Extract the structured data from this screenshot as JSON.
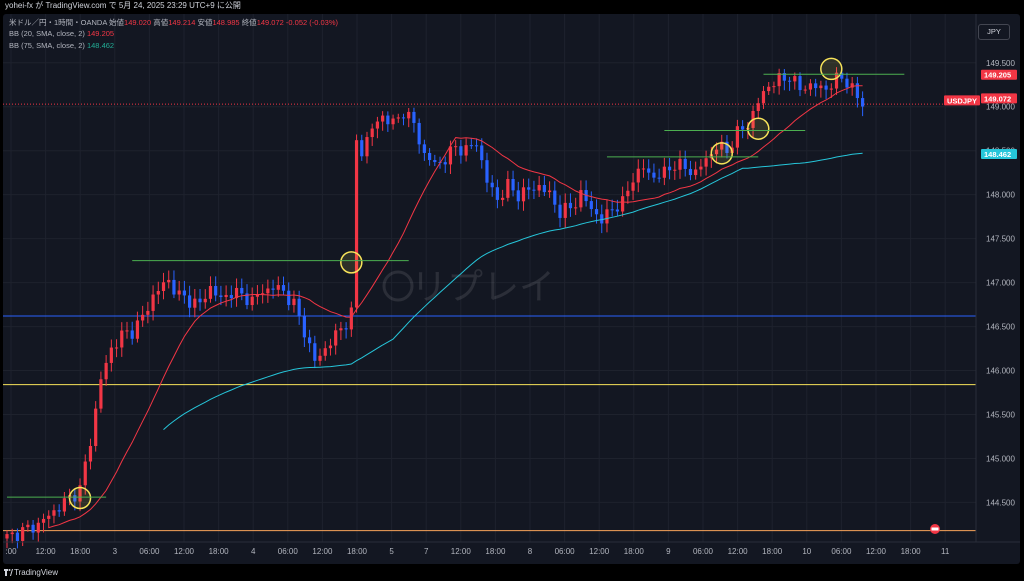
{
  "header": {
    "publish_text": "yohei-fx が TradingView.com で 5月 24, 2025 23:29 UTC+9 に公開"
  },
  "legend": {
    "symbol": "米ドル／円・1時間・OANDA",
    "open_label": "始値",
    "open": "149.020",
    "high_label": "高値",
    "high": "149.214",
    "low_label": "安値",
    "low": "148.985",
    "close_label": "終値",
    "close": "149.072",
    "change": "-0.052 (-0.03%)",
    "bb20": "BB (20, SMA, close, 2)",
    "bb20_value": "149.205",
    "bb75": "BB (75, SMA, close, 2)",
    "bb75_value": "148.462"
  },
  "currency_badge": "JPY",
  "watermark": "リプレイ",
  "footer": {
    "brand": "TradingView"
  },
  "colors": {
    "up": "#f23645",
    "down": "#2962ff",
    "ma20": "#f23645",
    "ma75": "#26c6da",
    "bg": "#131722",
    "yellow_line": "#f7e35a",
    "orange_line": "#f7a35a",
    "blue_line": "#2962ff",
    "green_line": "#4caf50",
    "circle": "#f7e35a"
  },
  "chart_data": {
    "type": "candlestick",
    "symbol": "USDJPY",
    "timeframe": "1h",
    "y_ticks": [
      "149.500",
      "149.000",
      "148.500",
      "148.000",
      "147.500",
      "147.000",
      "146.500",
      "146.000",
      "145.500",
      "145.000",
      "144.500"
    ],
    "ylim": [
      144.05,
      149.85
    ],
    "x_ticks": [
      ":00",
      "12:00",
      "18:00",
      "3",
      "06:00",
      "12:00",
      "18:00",
      "4",
      "06:00",
      "12:00",
      "18:00",
      "5",
      "7",
      "12:00",
      "18:00",
      "8",
      "06:00",
      "12:00",
      "18:00",
      "9",
      "06:00",
      "12:00",
      "18:00",
      "10",
      "06:00",
      "12:00",
      "18:00",
      "11"
    ],
    "price_labels": [
      {
        "text": "149.205",
        "value": 149.205,
        "color": "#f23645"
      },
      {
        "text": "USDJPY",
        "value": 149.072,
        "color": "#f23645"
      },
      {
        "text": "149.072",
        "value": 149.072,
        "color": "#f23645"
      },
      {
        "text": "148.462",
        "value": 148.462,
        "color": "#26c6da"
      }
    ],
    "horizontal_lines": [
      {
        "value": 146.62,
        "color": "#2962ff"
      },
      {
        "value": 145.84,
        "color": "#f7e35a"
      },
      {
        "value": 144.18,
        "color": "#f7a35a"
      },
      {
        "value": 149.03,
        "color": "#f23645",
        "dotted": true
      }
    ],
    "close_path": [
      [
        0,
        144.1
      ],
      [
        6,
        144.25
      ],
      [
        10,
        144.45
      ],
      [
        14,
        144.65
      ],
      [
        16,
        145.2
      ],
      [
        18,
        145.9
      ],
      [
        20,
        146.25
      ],
      [
        22,
        146.4
      ],
      [
        24,
        146.45
      ],
      [
        26,
        146.6
      ],
      [
        28,
        146.85
      ],
      [
        30,
        146.98
      ],
      [
        31,
        147.02
      ],
      [
        33,
        146.85
      ],
      [
        35,
        146.8
      ],
      [
        37,
        146.75
      ],
      [
        39,
        146.95
      ],
      [
        41,
        146.8
      ],
      [
        43,
        146.9
      ],
      [
        45,
        146.85
      ],
      [
        47,
        146.8
      ],
      [
        49,
        146.9
      ],
      [
        51,
        146.95
      ],
      [
        53,
        146.9
      ],
      [
        55,
        146.75
      ],
      [
        57,
        146.45
      ],
      [
        59,
        146.1
      ],
      [
        61,
        146.25
      ],
      [
        63,
        146.4
      ],
      [
        65,
        146.55
      ],
      [
        66,
        146.65
      ],
      [
        67,
        148.6
      ],
      [
        68,
        148.5
      ],
      [
        70,
        148.75
      ],
      [
        72,
        148.9
      ],
      [
        74,
        148.8
      ],
      [
        76,
        148.95
      ],
      [
        78,
        148.8
      ],
      [
        80,
        148.45
      ],
      [
        82,
        148.35
      ],
      [
        84,
        148.4
      ],
      [
        86,
        148.55
      ],
      [
        88,
        148.5
      ],
      [
        90,
        148.6
      ],
      [
        92,
        148.15
      ],
      [
        94,
        147.95
      ],
      [
        96,
        148.1
      ],
      [
        98,
        148.0
      ],
      [
        100,
        148.05
      ],
      [
        102,
        148.1
      ],
      [
        104,
        148.0
      ],
      [
        106,
        147.8
      ],
      [
        108,
        147.85
      ],
      [
        110,
        148.0
      ],
      [
        112,
        147.85
      ],
      [
        114,
        147.7
      ],
      [
        116,
        147.85
      ],
      [
        118,
        147.9
      ],
      [
        120,
        148.2
      ],
      [
        122,
        148.3
      ],
      [
        124,
        148.2
      ],
      [
        126,
        148.25
      ],
      [
        128,
        148.35
      ],
      [
        130,
        148.3
      ],
      [
        132,
        148.25
      ],
      [
        134,
        148.4
      ],
      [
        136,
        148.55
      ],
      [
        138,
        148.5
      ],
      [
        140,
        148.7
      ],
      [
        142,
        148.8
      ],
      [
        144,
        149.05
      ],
      [
        146,
        149.25
      ],
      [
        148,
        149.3
      ],
      [
        150,
        149.35
      ],
      [
        152,
        149.2
      ],
      [
        154,
        149.25
      ],
      [
        156,
        149.2
      ],
      [
        158,
        149.25
      ],
      [
        160,
        149.35
      ],
      [
        162,
        149.2
      ],
      [
        164,
        149.02
      ]
    ],
    "annotations": [
      {
        "type": "circle",
        "bar": 14,
        "value": 144.55
      },
      {
        "type": "circle",
        "bar": 66,
        "value": 147.23
      },
      {
        "type": "circle",
        "bar": 137,
        "value": 148.47
      },
      {
        "type": "circle",
        "bar": 144,
        "value": 148.75
      },
      {
        "type": "circle",
        "bar": 158,
        "value": 149.43
      },
      {
        "type": "hline",
        "from": 0,
        "to": 19,
        "value": 144.56,
        "color": "#4caf50"
      },
      {
        "type": "hline",
        "from": 24,
        "to": 77,
        "value": 147.25,
        "color": "#4caf50"
      },
      {
        "type": "hline",
        "from": 115,
        "to": 144,
        "value": 148.43,
        "color": "#4caf50"
      },
      {
        "type": "hline",
        "from": 126,
        "to": 153,
        "value": 148.73,
        "color": "#4caf50"
      },
      {
        "type": "hline",
        "from": 145,
        "to": 172,
        "value": 149.37,
        "color": "#4caf50"
      }
    ]
  }
}
